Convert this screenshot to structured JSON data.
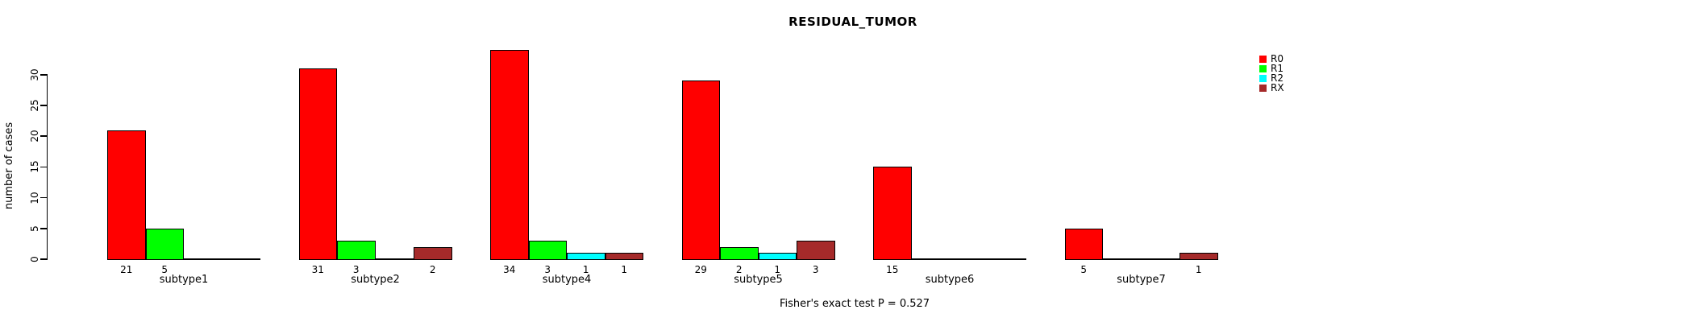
{
  "chart_data": {
    "type": "bar",
    "title": "RESIDUAL_TUMOR",
    "ylabel": "number of cases",
    "annotation": "Fisher's exact test P = 0.527",
    "categories": [
      "subtype1",
      "subtype2",
      "subtype4",
      "subtype5",
      "subtype6",
      "subtype7"
    ],
    "series": [
      {
        "name": "R0",
        "color": "#FF0000",
        "values": [
          21,
          31,
          34,
          29,
          15,
          5
        ]
      },
      {
        "name": "R1",
        "color": "#00FF00",
        "values": [
          5,
          3,
          3,
          2,
          0,
          0
        ]
      },
      {
        "name": "R2",
        "color": "#00FFFF",
        "values": [
          0,
          0,
          1,
          1,
          0,
          0
        ]
      },
      {
        "name": "RX",
        "color": "#A52A2A",
        "values": [
          0,
          2,
          1,
          3,
          0,
          1
        ]
      }
    ],
    "yticks": [
      0,
      5,
      10,
      15,
      20,
      25,
      30
    ],
    "ylim": [
      0,
      34
    ],
    "grid": false,
    "legend_position": "right",
    "bar_labels": "value printed below each nonzero bar"
  }
}
